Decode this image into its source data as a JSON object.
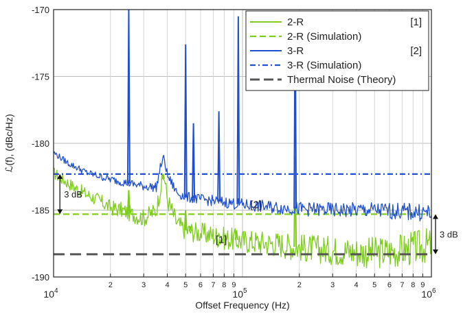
{
  "chart_data": {
    "type": "line",
    "xlabel": "Offset Frequency (Hz)",
    "ylabel": "ℒ(f), (dBc/Hz)",
    "x_scale": "log",
    "xlim": [
      10000,
      1000000
    ],
    "ylim": [
      -190,
      -170
    ],
    "grid": true,
    "legend_position": "top-right",
    "y_ticks": [
      "-170",
      "-175",
      "-180",
      "-185",
      "-190"
    ],
    "x_decade_ticks": [
      {
        "base": "10",
        "exp": "4"
      },
      {
        "base": "10",
        "exp": "5"
      },
      {
        "base": "10",
        "exp": "6"
      }
    ],
    "x_minor_labels": [
      "2",
      "3",
      "4",
      "5",
      "6",
      "7",
      "8",
      "9"
    ],
    "colors": {
      "two_r": "#7fcc1e",
      "three_r": "#1f4fd0",
      "thermal": "#555555",
      "annotation": "#111111"
    },
    "series": [
      {
        "name": "2-R",
        "ref": "[1]",
        "style": "solid",
        "points": [
          [
            10000,
            -182.2
          ],
          [
            12000,
            -183.0
          ],
          [
            14000,
            -183.6
          ],
          [
            17000,
            -184.2
          ],
          [
            20000,
            -184.8
          ],
          [
            23000,
            -185.0
          ],
          [
            26000,
            -185.3
          ],
          [
            30000,
            -185.6
          ],
          [
            35000,
            -185.0
          ],
          [
            37000,
            -183.2
          ],
          [
            38500,
            -182.4
          ],
          [
            40000,
            -184.2
          ],
          [
            45000,
            -186.0
          ],
          [
            50000,
            -186.5
          ],
          [
            60000,
            -186.7
          ],
          [
            70000,
            -186.9
          ],
          [
            80000,
            -187.1
          ],
          [
            100000,
            -187.3
          ],
          [
            150000,
            -187.5
          ],
          [
            200000,
            -187.8
          ],
          [
            300000,
            -188.0
          ],
          [
            500000,
            -188.2
          ],
          [
            700000,
            -188.0
          ],
          [
            1000000,
            -187.6
          ]
        ],
        "spurs": [
          [
            25000,
            -183.5
          ],
          [
            38000,
            -182.3
          ],
          [
            50000,
            -185.0
          ],
          [
            53000,
            -186.2
          ],
          [
            75000,
            -186.8
          ],
          [
            93000,
            -186.5
          ],
          [
            190000,
            -181.0
          ]
        ]
      },
      {
        "name": "2-R (Simulation)",
        "style": "dashed",
        "points": [
          [
            10000,
            -185.3
          ],
          [
            1000000,
            -185.3
          ]
        ]
      },
      {
        "name": "3-R",
        "ref": "[2]",
        "style": "solid",
        "points": [
          [
            10000,
            -180.7
          ],
          [
            12000,
            -181.5
          ],
          [
            15000,
            -182.2
          ],
          [
            20000,
            -182.7
          ],
          [
            25000,
            -183.0
          ],
          [
            30000,
            -183.2
          ],
          [
            35000,
            -183.3
          ],
          [
            37000,
            -181.6
          ],
          [
            38500,
            -181.1
          ],
          [
            40000,
            -182.4
          ],
          [
            45000,
            -183.7
          ],
          [
            50000,
            -184.0
          ],
          [
            60000,
            -184.2
          ],
          [
            70000,
            -184.3
          ],
          [
            80000,
            -184.4
          ],
          [
            100000,
            -184.6
          ],
          [
            150000,
            -184.8
          ],
          [
            200000,
            -184.9
          ],
          [
            300000,
            -185.0
          ],
          [
            500000,
            -185.0
          ],
          [
            700000,
            -185.1
          ],
          [
            1000000,
            -185.2
          ]
        ],
        "spurs": [
          [
            25000,
            -170.0
          ],
          [
            50000,
            -172.6
          ],
          [
            55000,
            -178.5
          ],
          [
            75000,
            -177.6
          ],
          [
            95000,
            -170.5
          ],
          [
            190000,
            -170.5
          ]
        ]
      },
      {
        "name": "3-R (Simulation)",
        "style": "dash-dot",
        "points": [
          [
            10000,
            -182.3
          ],
          [
            1000000,
            -182.3
          ]
        ]
      },
      {
        "name": "Thermal Noise (Theory)",
        "style": "long-dash",
        "points": [
          [
            10000,
            -188.3
          ],
          [
            1000000,
            -188.3
          ]
        ]
      }
    ],
    "annotations": [
      {
        "text": "3 dB",
        "x": 10800,
        "y_from": -182.3,
        "y_to": -185.3
      },
      {
        "text": "3 dB",
        "x": 1000000,
        "y_from": -185.3,
        "y_to": -188.3
      },
      {
        "text": "[2]",
        "x": 110000,
        "y": -184.6
      },
      {
        "text": "[1]",
        "x": 72000,
        "y": -187.2
      }
    ]
  }
}
